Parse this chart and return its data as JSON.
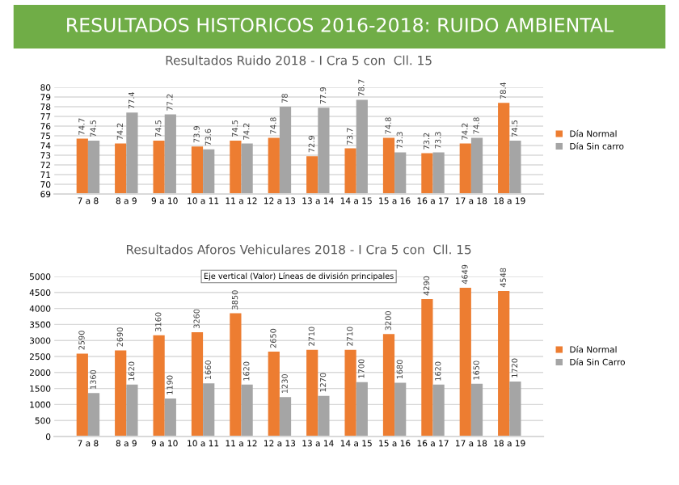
{
  "chart_data": [
    {
      "type": "other",
      "title": "RESULTADOS HISTORICOS 2016-2018: RUIDO AMBIENTAL"
    },
    {
      "type": "bar",
      "title": "Resultados Ruido 2018 - I Cra 5 con  Cll. 15",
      "categories": [
        "7 a 8",
        "8 a 9",
        "9 a 10",
        "10 a 11",
        "11 a 12",
        "12 a 13",
        "13 a 14",
        "14 a 15",
        "15 a 16",
        "16 a 17",
        "17 a 18",
        "18 a 19"
      ],
      "series": [
        {
          "name": "Día Normal",
          "color": "#ed7d31",
          "values": [
            74.7,
            74.2,
            74.5,
            73.9,
            74.5,
            74.8,
            72.9,
            73.7,
            74.8,
            73.2,
            74.2,
            78.4
          ]
        },
        {
          "name": "Día Sin carro",
          "color": "#a5a5a5",
          "values": [
            74.5,
            77.4,
            77.2,
            73.6,
            74.2,
            78,
            77.9,
            78.7,
            73.3,
            73.3,
            74.8,
            74.5
          ]
        }
      ],
      "ylim": [
        69,
        80
      ],
      "yticks": [
        69,
        70,
        71,
        72,
        73,
        74,
        75,
        76,
        77,
        78,
        79,
        80
      ],
      "grid": "y",
      "legend": "right",
      "data_labels": true
    },
    {
      "type": "bar",
      "title": "Resultados Aforos Vehiculares 2018 - I Cra 5 con  Cll. 15",
      "categories": [
        "7 a 8",
        "8 a 9",
        "9 a 10",
        "10 a 11",
        "11 a 12",
        "12 a 13",
        "13 a 14",
        "14 a 15",
        "15 a 16",
        "16 a 17",
        "17 a 18",
        "18 a 19"
      ],
      "series": [
        {
          "name": "Día Normal",
          "color": "#ed7d31",
          "values": [
            2590,
            2690,
            3160,
            3260,
            3850,
            2650,
            2710,
            2710,
            3200,
            4290,
            4649,
            4548
          ]
        },
        {
          "name": "Día Sin Carro",
          "color": "#a5a5a5",
          "values": [
            1360,
            1620,
            1190,
            1660,
            1620,
            1230,
            1270,
            1700,
            1680,
            1620,
            1650,
            1720
          ]
        }
      ],
      "ylim": [
        0,
        5000
      ],
      "yticks": [
        0,
        500,
        1000,
        1500,
        2000,
        2500,
        3000,
        3500,
        4000,
        4500,
        5000
      ],
      "grid": "y",
      "legend": "right",
      "data_labels": true,
      "annotations": [
        "Eje vertical (Valor) Líneas de división principales"
      ]
    }
  ]
}
